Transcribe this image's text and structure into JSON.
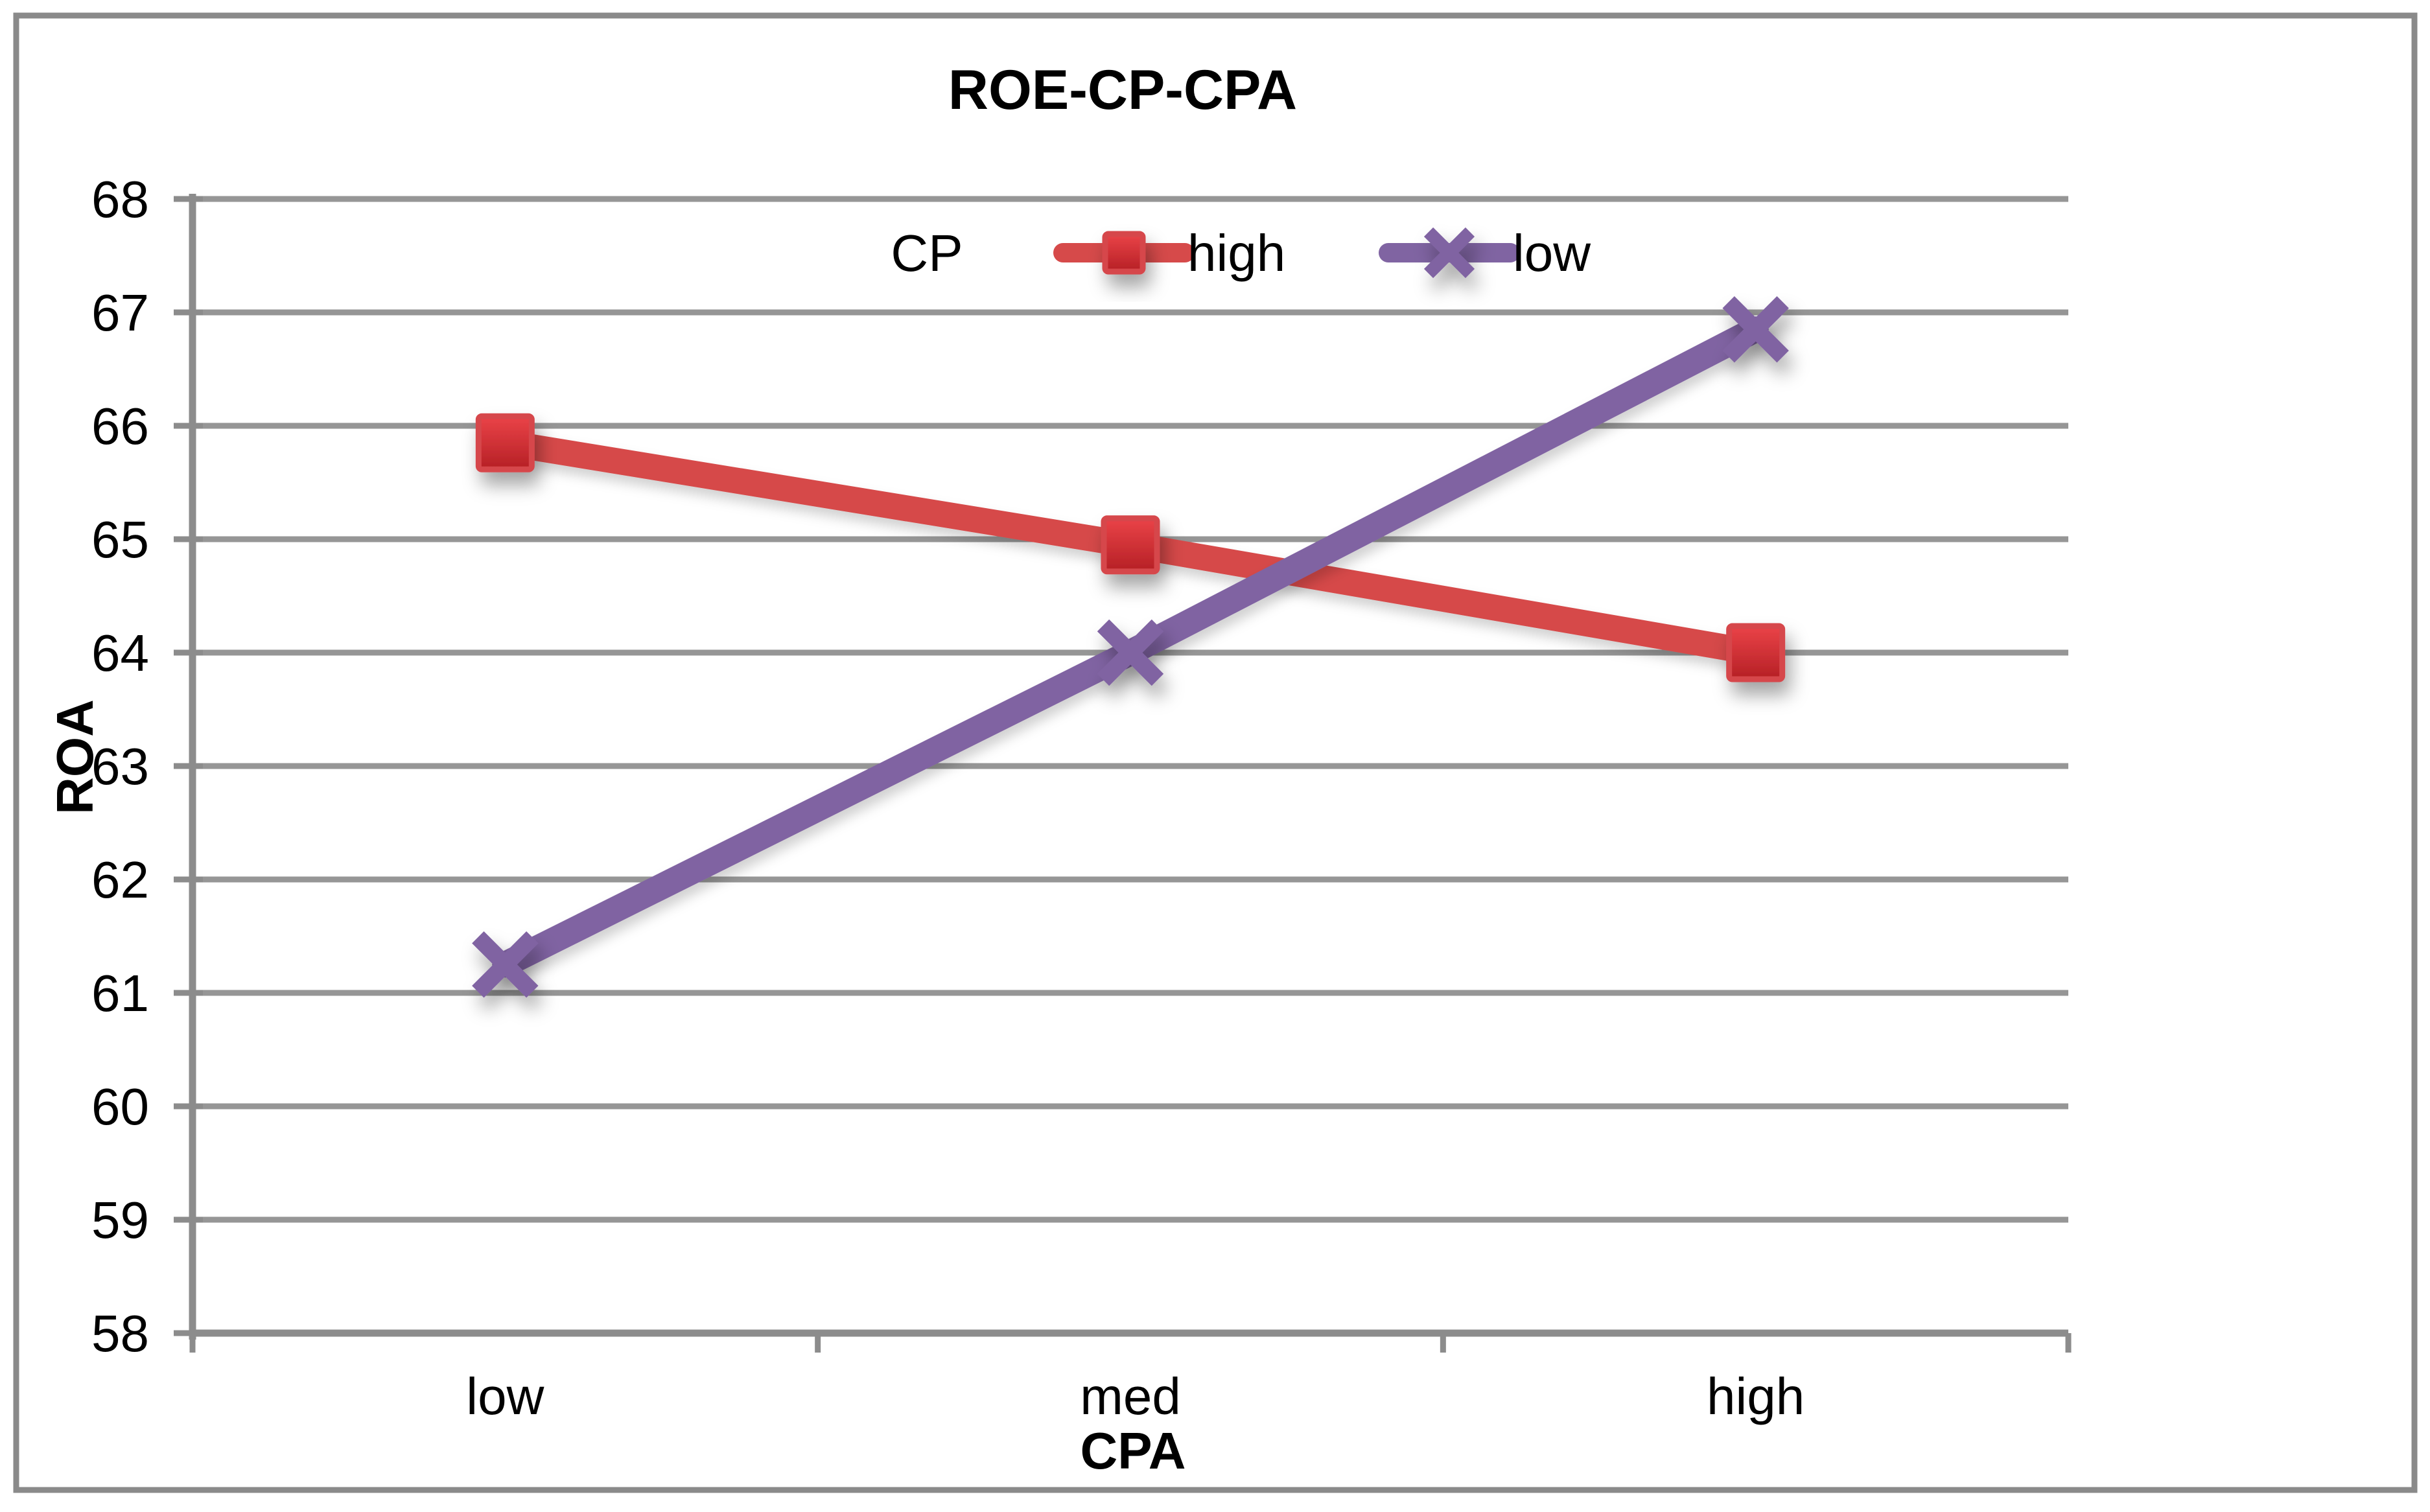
{
  "chart_data": {
    "type": "line",
    "title": "ROE-CP-CPA",
    "xlabel": "CPA",
    "ylabel": "ROA",
    "legend_title": "CP",
    "legend_position": "top-inside",
    "grid": true,
    "categories": [
      "low",
      "med",
      "high"
    ],
    "yticks": [
      68,
      67,
      66,
      65,
      64,
      63,
      62,
      61,
      60,
      59,
      58
    ],
    "ylim": [
      58,
      68
    ],
    "series": [
      {
        "name": "high",
        "marker": "square",
        "color": "#D64A4A",
        "marker_gradient_top": "#EA4348",
        "marker_gradient_bottom": "#B52025",
        "marker_border": "#D6474C",
        "values": [
          65.85,
          64.95,
          64.0
        ]
      },
      {
        "name": "low",
        "marker": "x",
        "color": "#8064A2",
        "values": [
          61.25,
          64.0,
          66.85
        ]
      }
    ],
    "colors": {
      "gridline": "#969696",
      "axis": "#8C8C8C",
      "frame_border": "#8A8A8A",
      "text": "#000000",
      "background": "#FFFFFF"
    }
  }
}
